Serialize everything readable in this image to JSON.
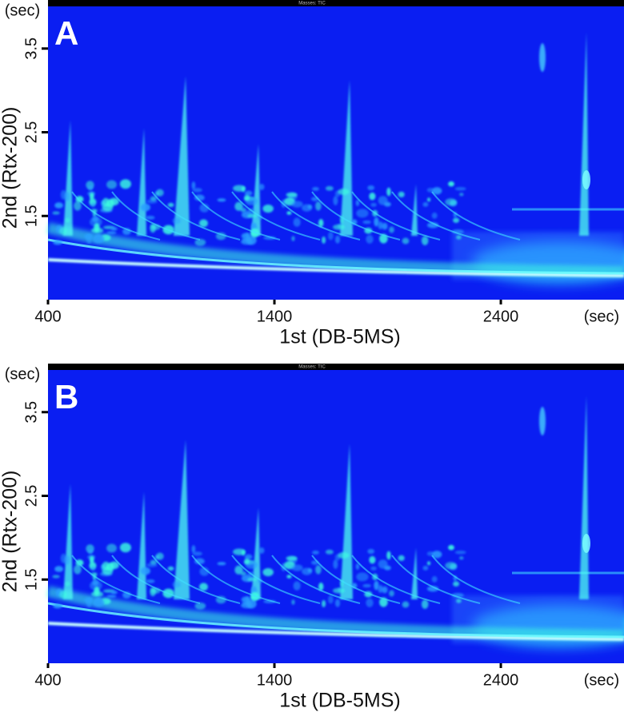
{
  "chart_data": [
    {
      "type": "contour",
      "panel_label": "A",
      "header": "Masses: TIC",
      "x_label": "1st (DB-5MS)",
      "y_label": "2nd (Rtx-200)",
      "x_unit": "(sec)",
      "y_unit": "(sec)",
      "xlim": [
        400,
        2944
      ],
      "ylim": [
        0.5,
        4.08
      ],
      "xticks": [
        400,
        1400,
        2400
      ],
      "yticks": [
        1.5,
        2.5,
        3.5
      ]
    },
    {
      "type": "contour",
      "panel_label": "B",
      "header": "Masses: TIC",
      "x_label": "1st (DB-5MS)",
      "y_label": "2nd (Rtx-200)",
      "x_unit": "(sec)",
      "y_unit": "(sec)",
      "xlim": [
        400,
        2944
      ],
      "ylim": [
        0.5,
        4.08
      ],
      "xticks": [
        400,
        1400,
        2400
      ],
      "yticks": [
        1.5,
        2.5,
        3.5
      ]
    }
  ]
}
